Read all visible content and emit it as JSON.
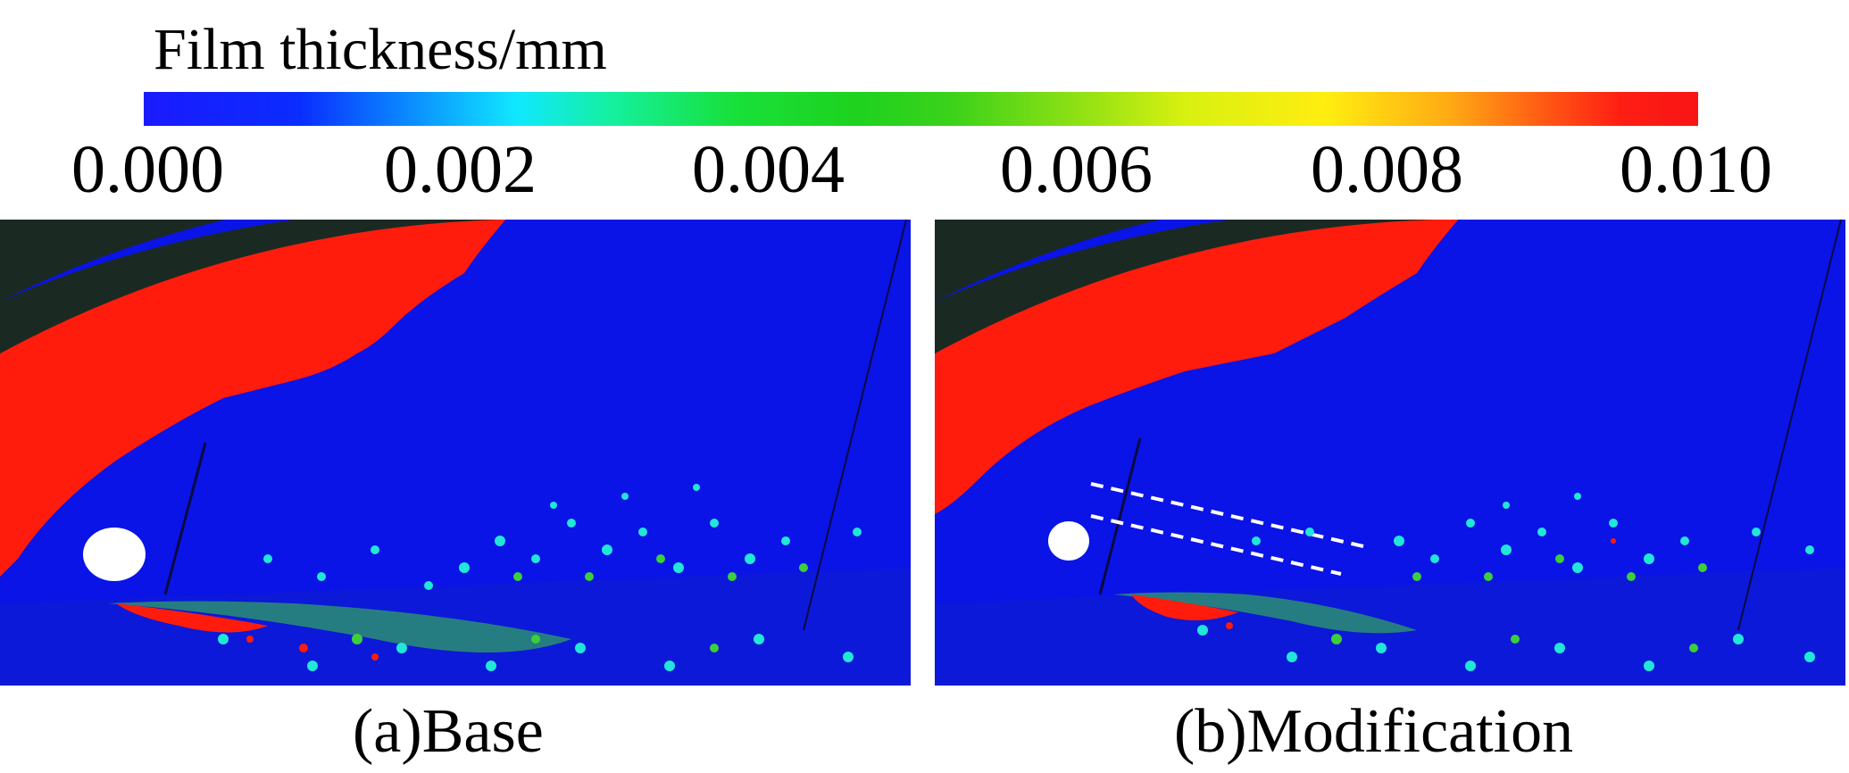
{
  "colorbar": {
    "title": "Film thickness/mm",
    "ticks": [
      "0.000",
      "0.002",
      "0.004",
      "0.006",
      "0.008",
      "0.010"
    ],
    "colors": [
      "#1a1aff",
      "#10e8ff",
      "#1ed21e",
      "#ffee10",
      "#ff1e14"
    ]
  },
  "panels": [
    {
      "caption": "(a)Base"
    },
    {
      "caption": "(b)Modification"
    }
  ],
  "colors": {
    "background_blue": "#0a14e6",
    "film_red": "#ff1c0c",
    "droplet_cyan": "#21e6d8",
    "droplet_green": "#3ccf3a",
    "dark_band": "#1a2a22"
  }
}
